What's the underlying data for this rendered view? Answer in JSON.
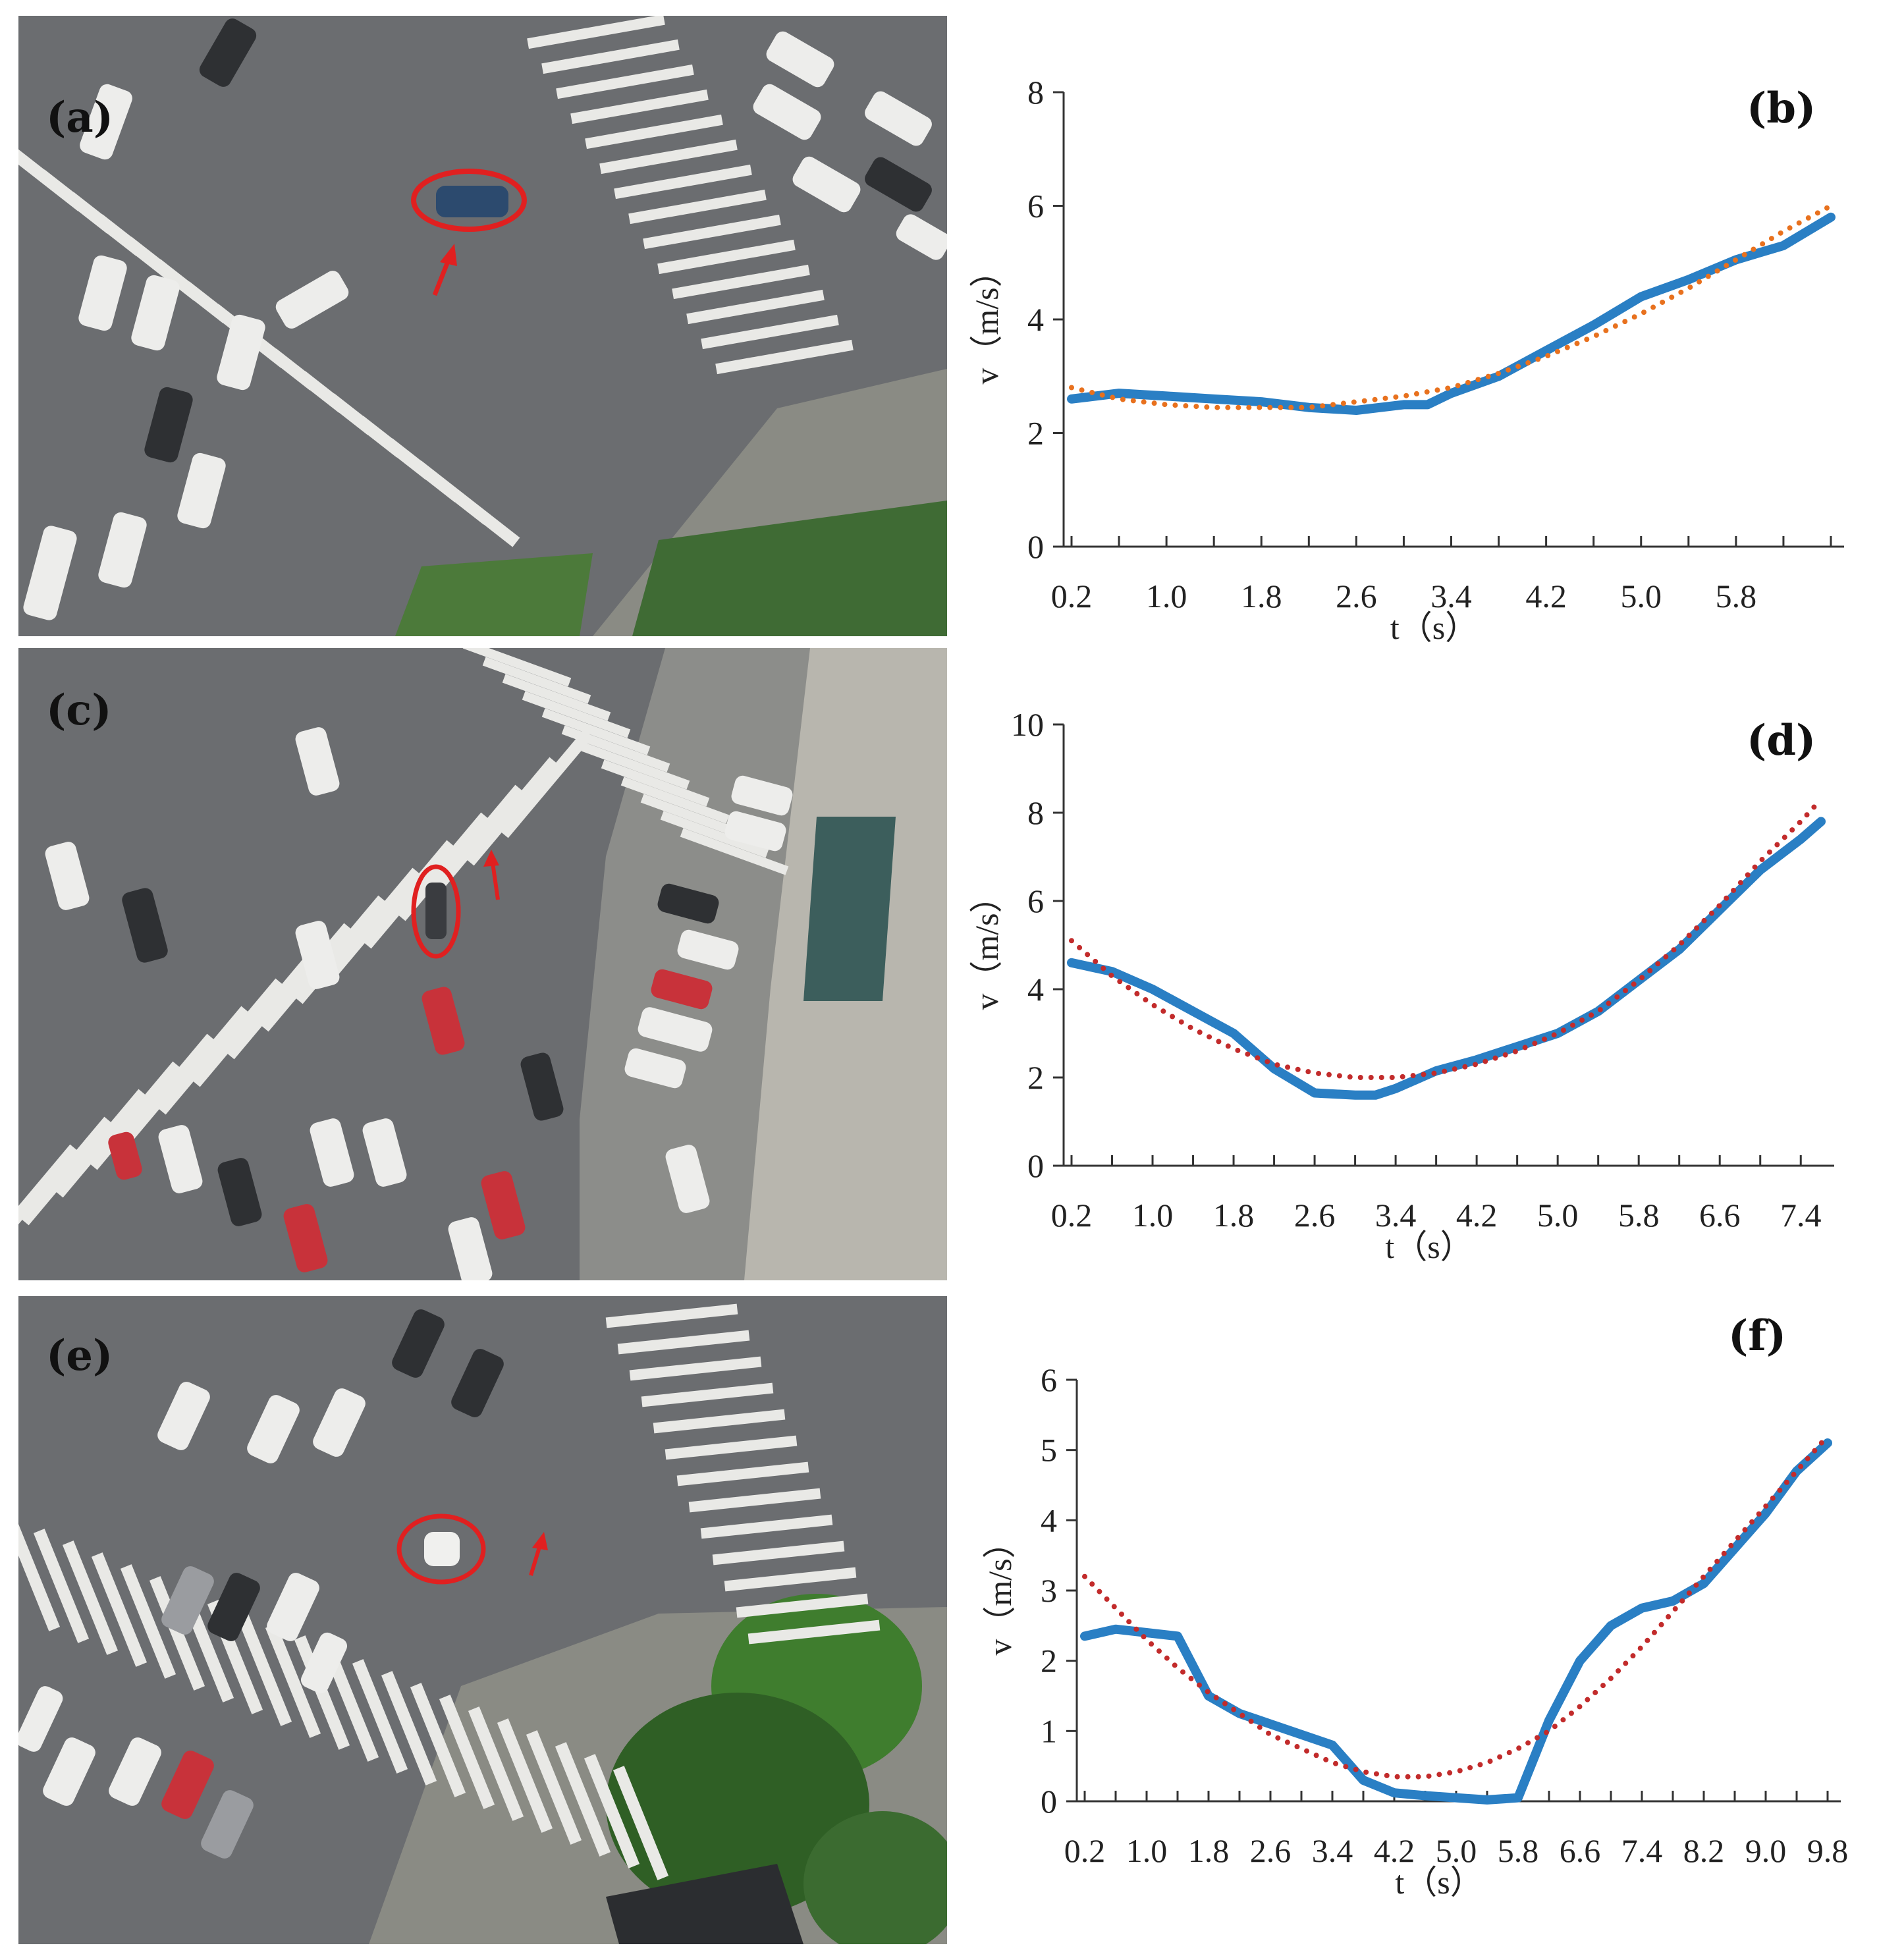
{
  "panels": {
    "a": "(a)",
    "b": "(b)",
    "c": "(c)",
    "d": "(d)",
    "e": "(e)",
    "f": "(f)"
  },
  "colors": {
    "measured": "#2a7fc4",
    "fit_b": "#e8711e",
    "fit_df": "#c22b2b",
    "road": "#6b6d70",
    "crosswalk": "#e9e9e6",
    "highlight": "#e02020"
  },
  "chart_data": [
    {
      "id": "b",
      "type": "line",
      "title": "",
      "xlabel": "t（s）",
      "ylabel": "v（m/s）",
      "xlim": [
        0.2,
        6.6
      ],
      "ylim": [
        0,
        8
      ],
      "xticks": [
        "0.2",
        "1.0",
        "1.8",
        "2.6",
        "3.4",
        "4.2",
        "5.0",
        "5.8"
      ],
      "yticks": [
        "0",
        "2",
        "4",
        "6",
        "8"
      ],
      "grid": false,
      "series": [
        {
          "role": "measured",
          "style": "solid",
          "x": [
            0.2,
            0.6,
            1.0,
            1.4,
            1.8,
            2.2,
            2.6,
            3.0,
            3.2,
            3.4,
            3.8,
            4.2,
            4.6,
            5.0,
            5.4,
            5.8,
            6.2,
            6.6
          ],
          "y": [
            2.6,
            2.7,
            2.65,
            2.6,
            2.55,
            2.45,
            2.4,
            2.5,
            2.5,
            2.7,
            3.0,
            3.45,
            3.9,
            4.4,
            4.7,
            5.05,
            5.3,
            5.8
          ]
        },
        {
          "role": "fit",
          "style": "dotted",
          "x": [
            0.2,
            0.6,
            1.0,
            1.4,
            1.8,
            2.2,
            2.6,
            3.0,
            3.4,
            3.8,
            4.2,
            4.6,
            5.0,
            5.4,
            5.8,
            6.2,
            6.6
          ],
          "y": [
            2.8,
            2.6,
            2.5,
            2.45,
            2.45,
            2.45,
            2.55,
            2.65,
            2.8,
            3.05,
            3.35,
            3.7,
            4.1,
            4.55,
            5.05,
            5.55,
            6.0
          ]
        }
      ]
    },
    {
      "id": "d",
      "type": "line",
      "title": "",
      "xlabel": "t（s）",
      "ylabel": "v（m/s）",
      "xlim": [
        0.2,
        7.6
      ],
      "ylim": [
        0,
        10
      ],
      "xticks": [
        "0.2",
        "1.0",
        "1.8",
        "2.6",
        "3.4",
        "4.2",
        "5.0",
        "5.8",
        "6.6",
        "7.4"
      ],
      "yticks": [
        "0",
        "2",
        "4",
        "6",
        "8",
        "10"
      ],
      "grid": false,
      "series": [
        {
          "role": "measured",
          "style": "solid",
          "x": [
            0.2,
            0.6,
            1.0,
            1.4,
            1.8,
            2.2,
            2.6,
            3.0,
            3.2,
            3.4,
            3.8,
            4.2,
            4.6,
            5.0,
            5.4,
            5.8,
            6.2,
            6.6,
            7.0,
            7.4,
            7.6
          ],
          "y": [
            4.6,
            4.4,
            4.0,
            3.5,
            3.0,
            2.2,
            1.65,
            1.6,
            1.6,
            1.75,
            2.15,
            2.4,
            2.7,
            3.0,
            3.5,
            4.2,
            4.9,
            5.8,
            6.7,
            7.4,
            7.8
          ]
        },
        {
          "role": "fit",
          "style": "dotted",
          "x": [
            0.2,
            0.6,
            1.0,
            1.4,
            1.8,
            2.2,
            2.6,
            3.0,
            3.4,
            3.8,
            4.2,
            4.6,
            5.0,
            5.4,
            5.8,
            6.2,
            6.6,
            7.0,
            7.4,
            7.6
          ],
          "y": [
            5.1,
            4.3,
            3.65,
            3.1,
            2.65,
            2.3,
            2.1,
            2.0,
            2.0,
            2.1,
            2.3,
            2.6,
            3.0,
            3.5,
            4.2,
            5.0,
            5.9,
            6.9,
            7.8,
            8.3
          ]
        }
      ]
    },
    {
      "id": "f",
      "type": "line",
      "title": "",
      "xlabel": "t（s）",
      "ylabel": "v（m/s）",
      "xlim": [
        0.2,
        9.8
      ],
      "ylim": [
        0,
        6
      ],
      "xticks": [
        "0.2",
        "1.0",
        "1.8",
        "2.6",
        "3.4",
        "4.2",
        "5.0",
        "5.8",
        "6.6",
        "7.4",
        "8.2",
        "9.0",
        "9.8"
      ],
      "yticks": [
        "0",
        "1",
        "2",
        "3",
        "4",
        "5",
        "6"
      ],
      "grid": false,
      "series": [
        {
          "role": "measured",
          "style": "solid",
          "x": [
            0.2,
            0.6,
            1.0,
            1.4,
            1.8,
            2.2,
            2.6,
            3.0,
            3.4,
            3.8,
            4.2,
            4.6,
            5.0,
            5.4,
            5.8,
            6.2,
            6.6,
            7.0,
            7.4,
            7.8,
            8.2,
            8.6,
            9.0,
            9.4,
            9.8
          ],
          "y": [
            2.35,
            2.45,
            2.4,
            2.35,
            1.5,
            1.25,
            1.1,
            0.95,
            0.8,
            0.3,
            0.12,
            0.08,
            0.05,
            0.02,
            0.05,
            1.15,
            2.0,
            2.5,
            2.75,
            2.85,
            3.1,
            3.6,
            4.1,
            4.7,
            5.1
          ]
        },
        {
          "role": "fit",
          "style": "dotted",
          "x": [
            0.2,
            0.6,
            1.0,
            1.4,
            1.8,
            2.2,
            2.6,
            3.0,
            3.4,
            3.8,
            4.2,
            4.6,
            5.0,
            5.4,
            5.8,
            6.2,
            6.6,
            7.0,
            7.4,
            7.8,
            8.2,
            8.6,
            9.0,
            9.4,
            9.8
          ],
          "y": [
            3.2,
            2.75,
            2.3,
            1.9,
            1.55,
            1.25,
            0.95,
            0.75,
            0.55,
            0.42,
            0.35,
            0.35,
            0.42,
            0.55,
            0.75,
            1.0,
            1.35,
            1.75,
            2.2,
            2.7,
            3.2,
            3.7,
            4.2,
            4.7,
            5.2
          ]
        }
      ]
    }
  ]
}
